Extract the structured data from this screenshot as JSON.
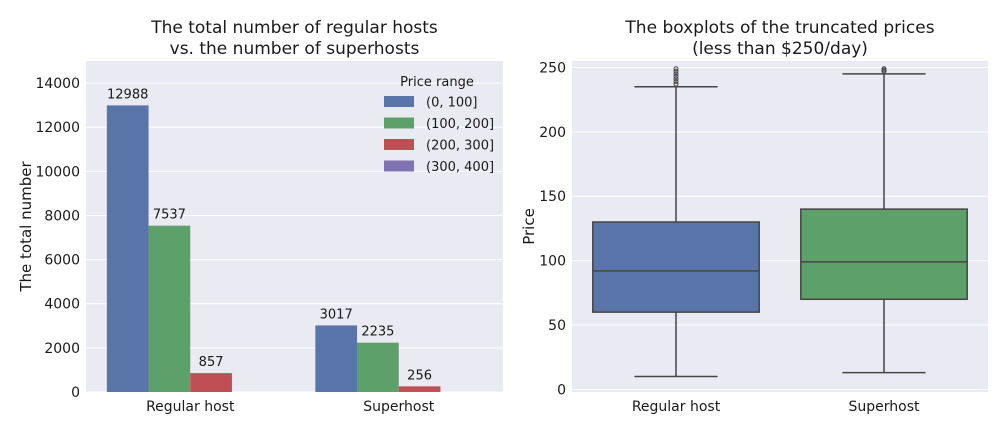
{
  "chart_data": [
    {
      "type": "bar",
      "title": [
        "The total number of regular hosts",
        "vs. the number of superhosts"
      ],
      "xlabel": "",
      "ylabel": "The total number",
      "ylim": [
        0,
        15000
      ],
      "yticks": [
        0,
        2000,
        4000,
        6000,
        8000,
        10000,
        12000,
        14000
      ],
      "grid": true,
      "categories": [
        "Regular host",
        "Superhost"
      ],
      "legend": {
        "title": "Price range",
        "placement": "top-right"
      },
      "series": [
        {
          "name": "(0, 100]",
          "color": "#5874a8",
          "values": [
            12988,
            3017
          ]
        },
        {
          "name": "(100, 200]",
          "color": "#5ea06a",
          "values": [
            7537,
            2235
          ]
        },
        {
          "name": "(200, 300]",
          "color": "#c04f55",
          "values": [
            857,
            256
          ]
        },
        {
          "name": "(300, 400]",
          "color": "#8172b2",
          "values": [
            null,
            null
          ]
        }
      ]
    },
    {
      "type": "box",
      "title": [
        "The boxplots of the truncated prices",
        "(less than $250/day)"
      ],
      "xlabel": "",
      "ylabel": "Price",
      "ylim": [
        -2,
        255
      ],
      "yticks": [
        0,
        50,
        100,
        150,
        200,
        250
      ],
      "grid": true,
      "categories": [
        "Regular host",
        "Superhost"
      ],
      "boxes": [
        {
          "category": "Regular host",
          "color": "#5874a8",
          "whisker_low": 10,
          "q1": 60,
          "median": 92,
          "q3": 130,
          "whisker_high": 235,
          "outliers": [
            237,
            239,
            241,
            243,
            245,
            247,
            249
          ]
        },
        {
          "category": "Superhost",
          "color": "#5ea06a",
          "whisker_low": 13,
          "q1": 70,
          "median": 99,
          "q3": 140,
          "whisker_high": 245,
          "outliers": [
            247,
            248,
            249
          ]
        }
      ]
    }
  ]
}
